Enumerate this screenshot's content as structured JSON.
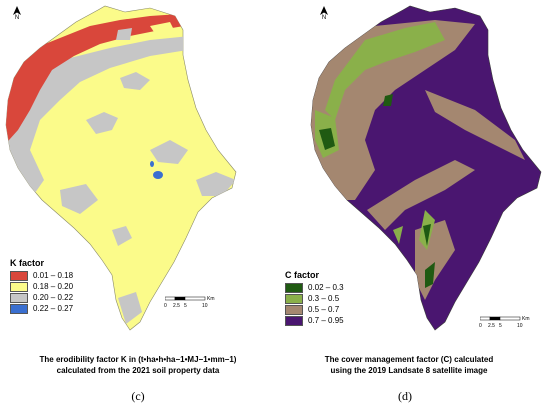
{
  "panels": [
    {
      "north_label": "N",
      "legend": {
        "title": "K factor",
        "items": [
          {
            "label": "0.01 – 0.18",
            "color": "#d9473b"
          },
          {
            "label": "0.18 – 0.20",
            "color": "#fbfb8a"
          },
          {
            "label": "0.20 – 0.22",
            "color": "#c6c6c6"
          },
          {
            "label": "0.22 – 0.27",
            "color": "#3a6fd0"
          }
        ]
      },
      "scale": {
        "ticks": [
          "0",
          "2.5",
          "5",
          "10"
        ],
        "unit": "Km"
      },
      "caption_line1": "The erodibility factor K in (t•ha•h•ha−1•MJ−1•mm−1)",
      "caption_line2": "calculated from the 2021 soil property data",
      "label": "(c)"
    },
    {
      "north_label": "N",
      "legend": {
        "title": "C factor",
        "items": [
          {
            "label": "0.02 – 0.3",
            "color": "#1f5a12"
          },
          {
            "label": "0.3 – 0.5",
            "color": "#8ab04a"
          },
          {
            "label": "0.5 – 0.7",
            "color": "#a48770"
          },
          {
            "label": "0.7 – 0.95",
            "color": "#4a1670"
          }
        ]
      },
      "scale": {
        "ticks": [
          "0",
          "2.5",
          "5",
          "10"
        ],
        "unit": "Km"
      },
      "caption_line1": "The cover management factor (C) calculated",
      "caption_line2": "using the 2019 Landsate 8 satellite image",
      "label": "(d)"
    }
  ]
}
